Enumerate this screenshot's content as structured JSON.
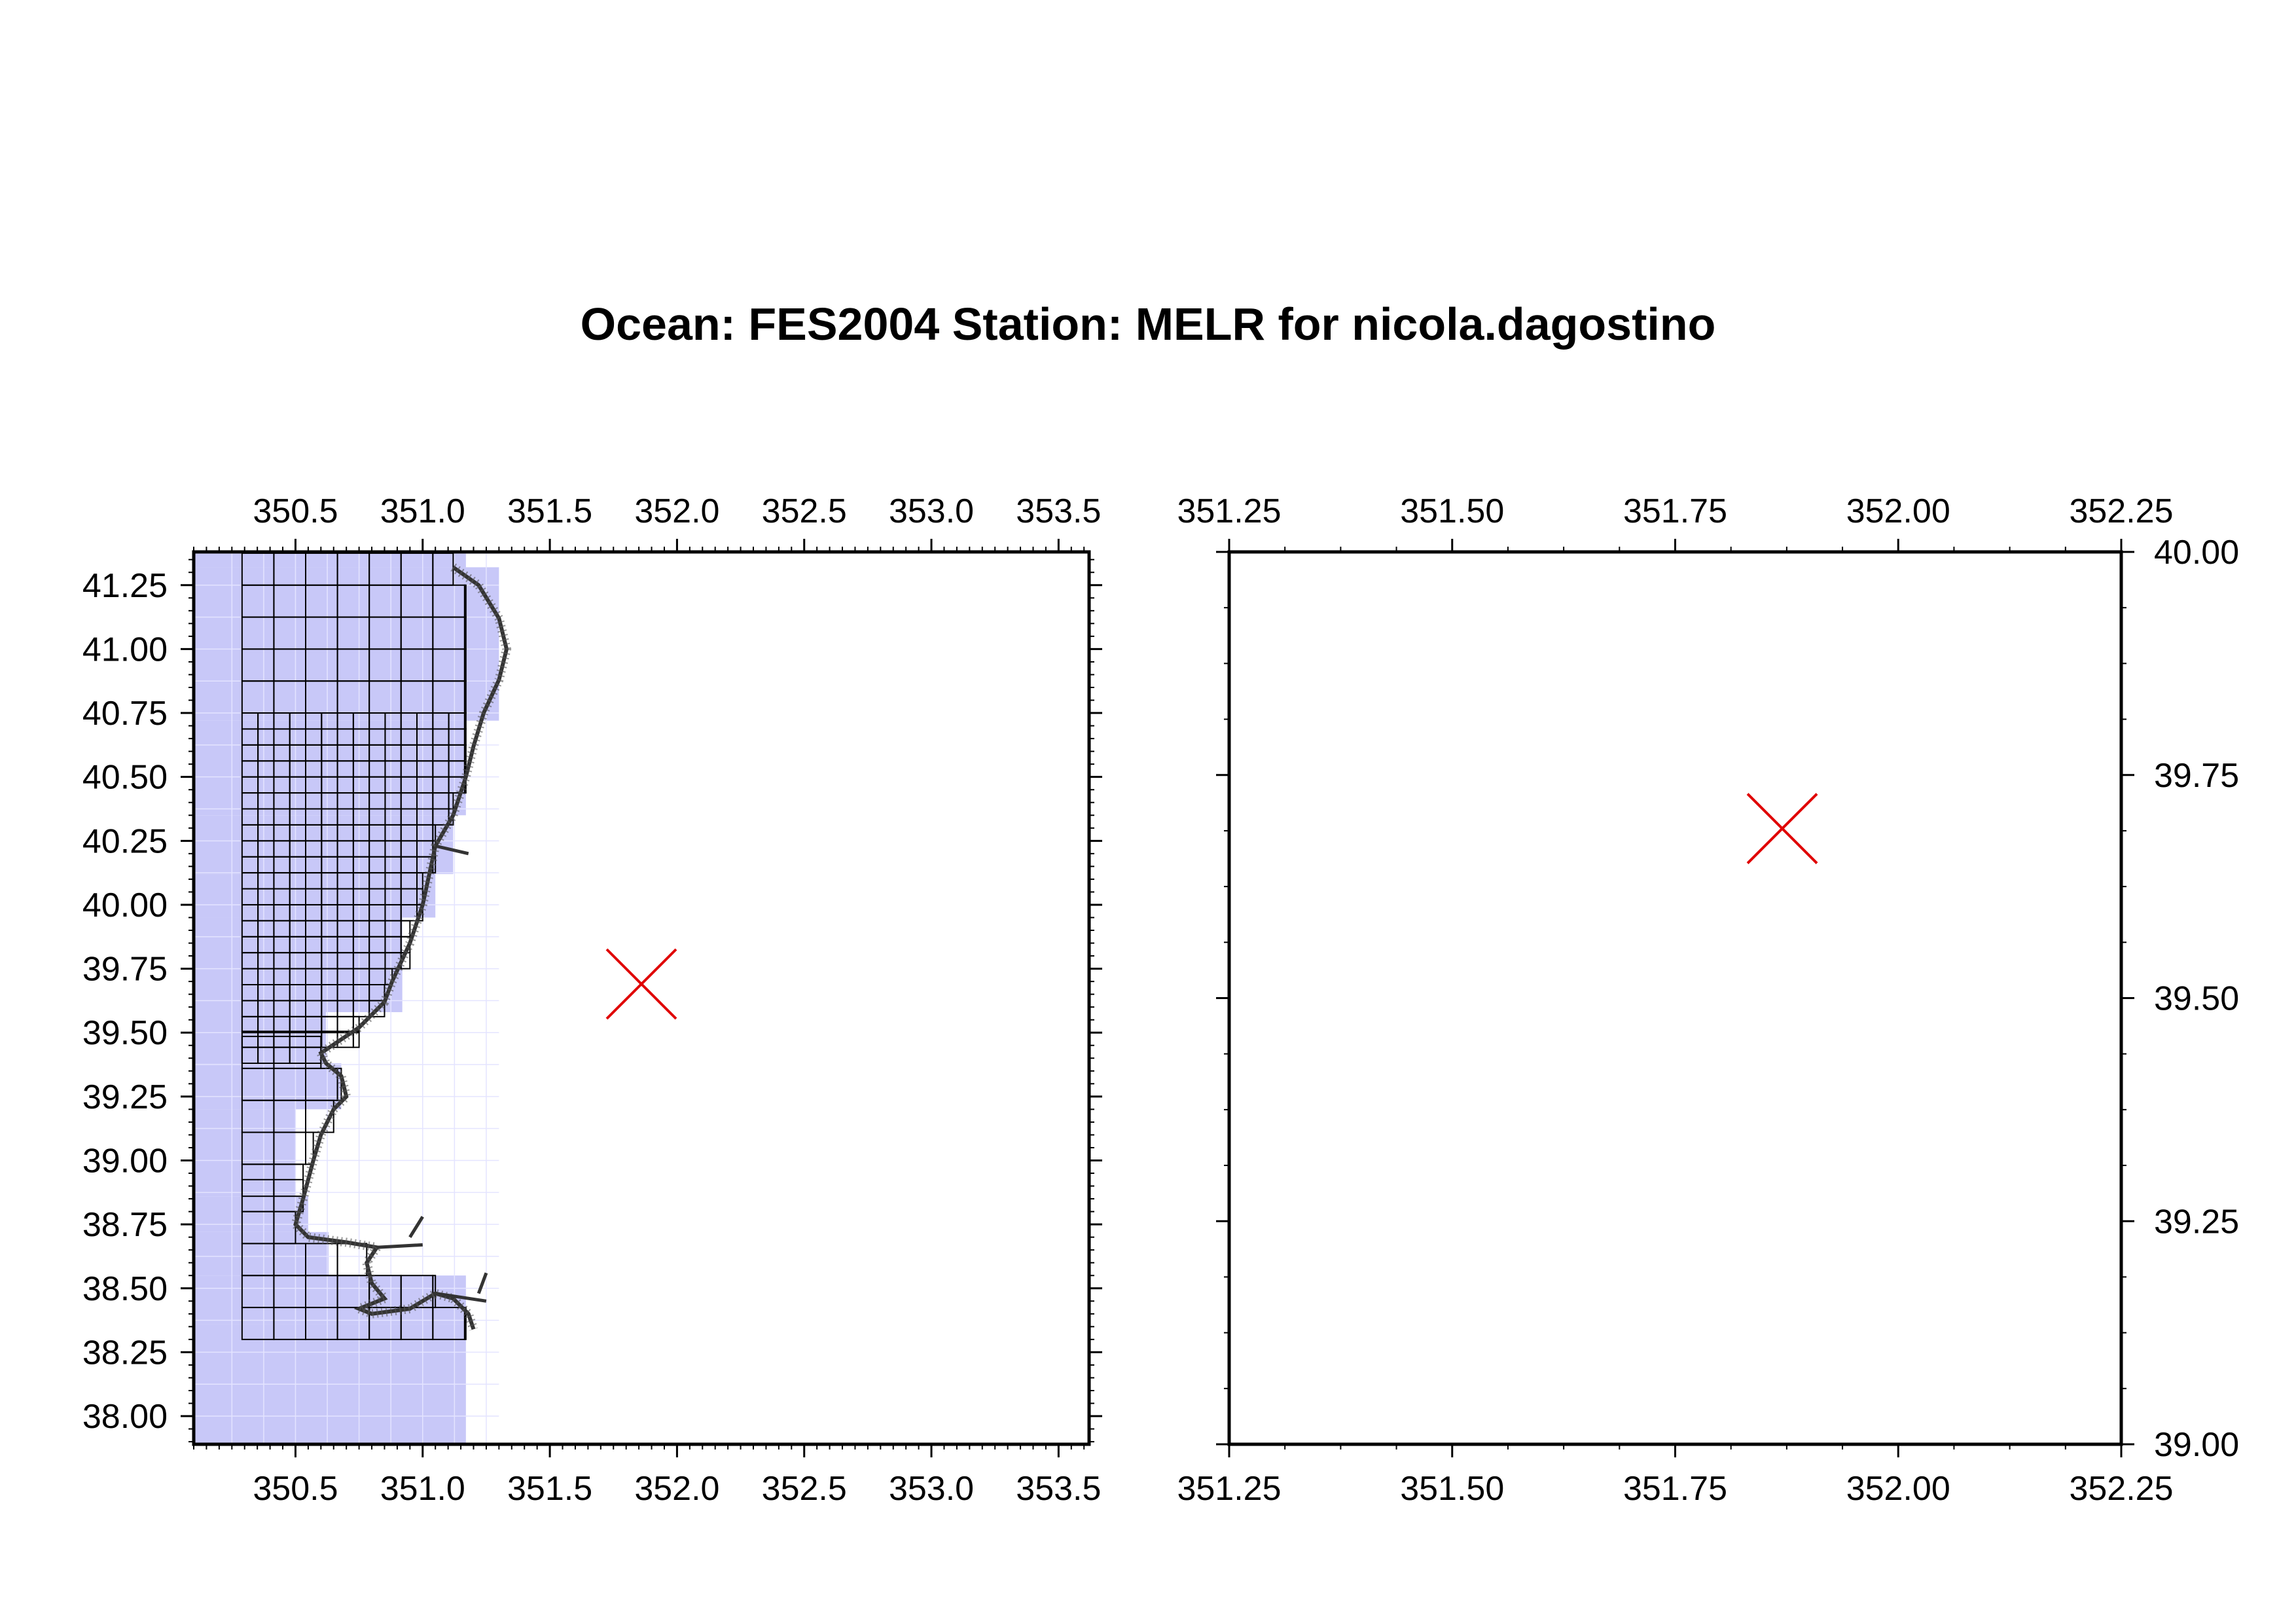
{
  "title": "Ocean: FES2004  Station: MELR  for nicola.dagostino",
  "colors": {
    "ocean_cells": "#c8c8f8",
    "station_marker": "#e00000",
    "mesh": "#000000"
  },
  "left_map": {
    "x_range": [
      350.1,
      353.62
    ],
    "y_range": [
      37.89,
      41.38
    ],
    "x_ticks": [
      "350.5",
      "351.0",
      "351.5",
      "352.0",
      "352.5",
      "353.0",
      "353.5"
    ],
    "y_ticks": [
      "38.00",
      "38.25",
      "38.50",
      "38.75",
      "39.00",
      "39.25",
      "39.50",
      "39.75",
      "40.00",
      "40.25",
      "40.50",
      "40.75",
      "41.00",
      "41.25"
    ],
    "station": {
      "lon": 351.86,
      "lat": 39.69
    }
  },
  "right_map": {
    "x_range": [
      351.25,
      352.25
    ],
    "y_range": [
      39.0,
      40.0
    ],
    "x_ticks": [
      "351.25",
      "351.50",
      "351.75",
      "352.00",
      "352.25"
    ],
    "y_ticks": [
      "39.00",
      "39.25",
      "39.50",
      "39.75",
      "40.00"
    ],
    "station": {
      "lon": 351.87,
      "lat": 39.69
    }
  }
}
